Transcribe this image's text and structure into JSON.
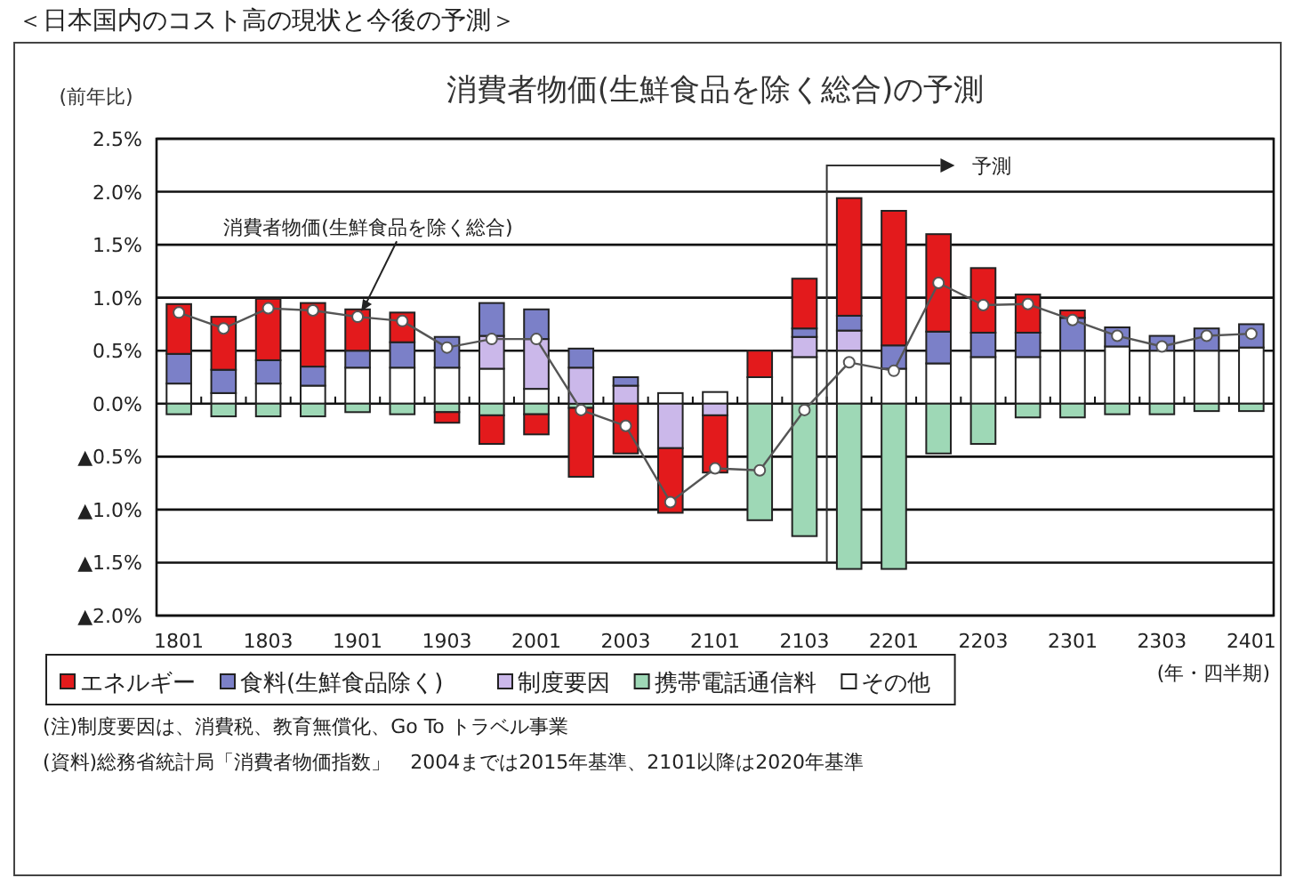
{
  "chart_data": {
    "type": "bar",
    "stacked": true,
    "title": "消費者物価(生鮮食品を除く総合)の予測",
    "ylabel": "(前年比)",
    "xlabel": "(年・四半期)",
    "categories": [
      "1801",
      null,
      "1803",
      null,
      "1901",
      null,
      "1903",
      null,
      "2001",
      null,
      "2003",
      null,
      "2101",
      null,
      "2103",
      null,
      "2201",
      null,
      "2203",
      null,
      "2301",
      null,
      "2303",
      null,
      "2401"
    ],
    "series": [
      {
        "name": "その他",
        "color": "#ffffff",
        "values": [
          0.19,
          0.1,
          0.19,
          0.17,
          0.34,
          0.34,
          0.34,
          0.33,
          0.14,
          0,
          0,
          0.1,
          0.11,
          0.25,
          0.44,
          0.5,
          0.33,
          0.38,
          0.44,
          0.44,
          0.5,
          0.54,
          0.5,
          0.5,
          0.53
        ]
      },
      {
        "name": "携帯電話通信料",
        "color": "#9ed8b6",
        "values": [
          -0.1,
          -0.12,
          -0.12,
          -0.12,
          -0.08,
          -0.1,
          -0.08,
          -0.11,
          -0.1,
          -0.04,
          0,
          0,
          0,
          -1.1,
          -1.25,
          -1.56,
          -1.56,
          -0.47,
          -0.38,
          -0.13,
          -0.13,
          -0.1,
          -0.1,
          -0.07,
          -0.07
        ]
      },
      {
        "name": "制度要因",
        "color": "#cbb8ea",
        "values": [
          0,
          0,
          0,
          0,
          0,
          0,
          0,
          0.31,
          0.47,
          0.34,
          0.17,
          -0.42,
          -0.11,
          0,
          0.19,
          0.19,
          0,
          0,
          0,
          0,
          0,
          0,
          0,
          0,
          0
        ]
      },
      {
        "name": "食料(生鮮食品除く)",
        "color": "#7b80c8",
        "values": [
          0.28,
          0.22,
          0.22,
          0.18,
          0.16,
          0.24,
          0.29,
          0.31,
          0.28,
          0.18,
          0.08,
          0,
          0,
          0,
          0.08,
          0.14,
          0.22,
          0.3,
          0.23,
          0.23,
          0.31,
          0.18,
          0.14,
          0.21,
          0.22
        ]
      },
      {
        "name": "エネルギー",
        "color": "#e31a1c",
        "values": [
          0.47,
          0.5,
          0.58,
          0.6,
          0.39,
          0.28,
          -0.1,
          -0.27,
          -0.19,
          -0.65,
          -0.47,
          -0.61,
          -0.54,
          0.25,
          0.47,
          1.11,
          1.27,
          0.92,
          0.61,
          0.36,
          0.07,
          0,
          0,
          0,
          0
        ]
      },
      {
        "name": "消費者物価(生鮮食品を除く総合)",
        "type": "line",
        "color": "#555555",
        "values": [
          0.86,
          0.71,
          0.9,
          0.88,
          0.82,
          0.78,
          0.53,
          0.61,
          0.61,
          -0.06,
          -0.21,
          -0.93,
          -0.61,
          -0.63,
          -0.06,
          0.39,
          0.31,
          1.14,
          0.93,
          0.94,
          0.79,
          0.64,
          0.54,
          0.64,
          0.66
        ]
      }
    ],
    "ylim": [
      -2.0,
      2.5
    ],
    "yticks": [
      {
        "value": -2.0,
        "label": "▲2.0%"
      },
      {
        "value": -1.5,
        "label": "▲1.5%"
      },
      {
        "value": -1.0,
        "label": "▲1.0%"
      },
      {
        "value": -0.5,
        "label": "▲0.5%"
      },
      {
        "value": 0.0,
        "label": "0.0%"
      },
      {
        "value": 0.5,
        "label": "0.5%"
      },
      {
        "value": 1.0,
        "label": "1.0%"
      },
      {
        "value": 1.5,
        "label": "1.5%"
      },
      {
        "value": 2.0,
        "label": "2.0%"
      },
      {
        "value": 2.5,
        "label": "2.5%"
      }
    ],
    "grid": "y",
    "legend": "bottom",
    "marker": "circle",
    "line_style": "solid",
    "annotations": [
      "＜日本国内のコスト高の現状と今後の予測＞",
      "予測",
      "(注)制度要因は、消費税、教育無償化、Go To トラベル事業",
      "(資料)総務省統計局「消費者物価指数」　2004までは2015年基準、2101以降は2020年基準"
    ]
  }
}
